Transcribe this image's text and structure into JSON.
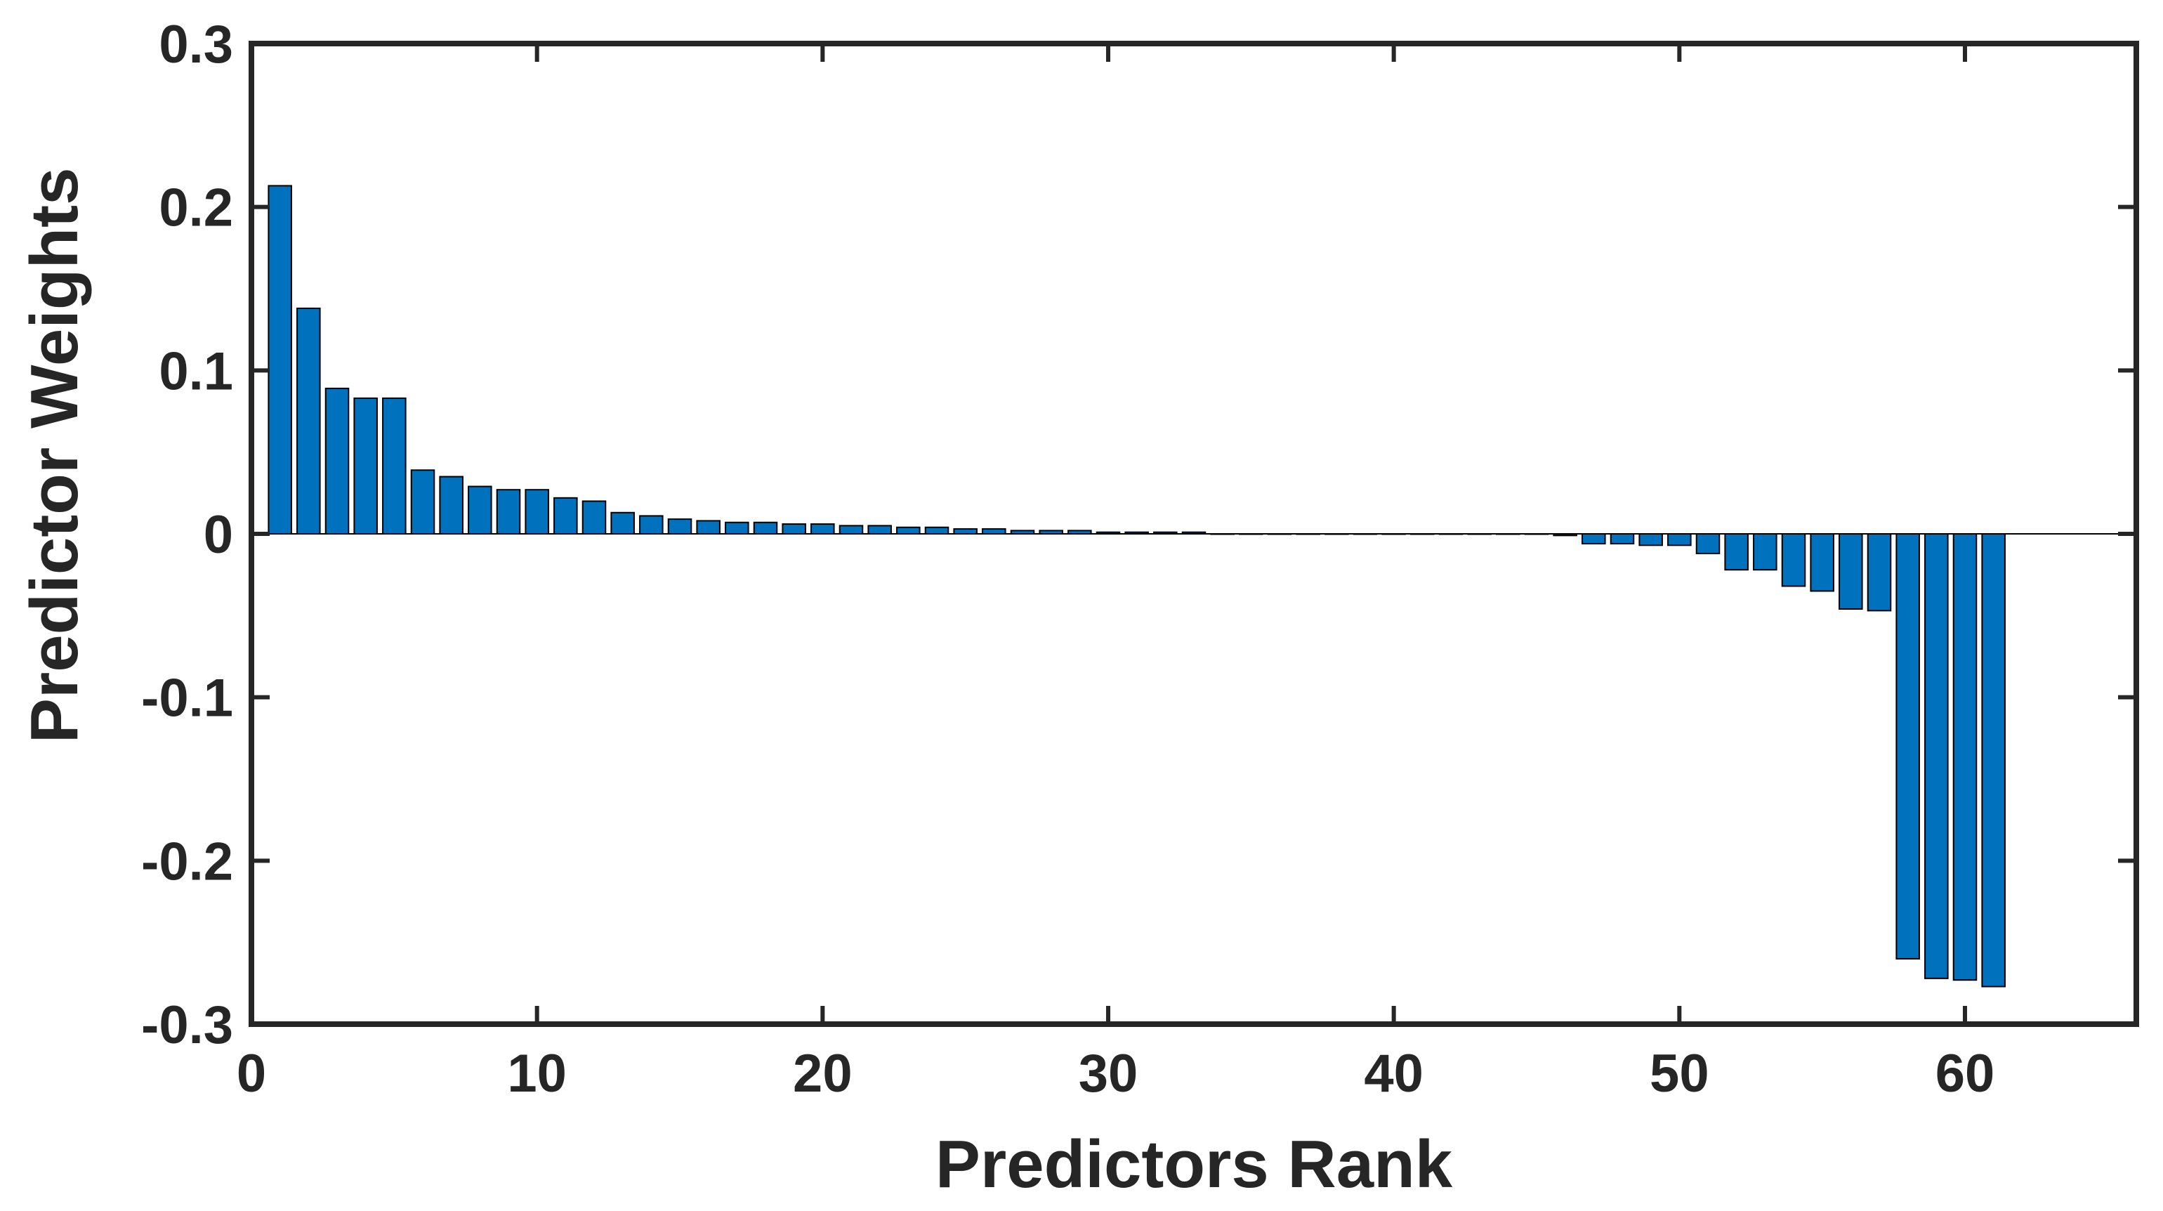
{
  "chart_data": {
    "type": "bar",
    "xlabel": "Predictors Rank",
    "ylabel": "Predictor Weights",
    "xlim": [
      0,
      66
    ],
    "ylim": [
      -0.3,
      0.3
    ],
    "xticks": [
      0,
      10,
      20,
      30,
      40,
      50,
      60
    ],
    "xtick_labels": [
      "0",
      "10",
      "20",
      "30",
      "40",
      "50",
      "60"
    ],
    "yticks": [
      -0.3,
      -0.2,
      -0.1,
      0,
      0.1,
      0.2,
      0.3
    ],
    "ytick_labels": [
      "-0.3",
      "-0.2",
      "-0.1",
      "0",
      "0.1",
      "0.2",
      "0.3"
    ],
    "grid": false,
    "bar_color": "#0072BD",
    "x": [
      1,
      2,
      3,
      4,
      5,
      6,
      7,
      8,
      9,
      10,
      11,
      12,
      13,
      14,
      15,
      16,
      17,
      18,
      19,
      20,
      21,
      22,
      23,
      24,
      25,
      26,
      27,
      28,
      29,
      30,
      31,
      32,
      33,
      34,
      35,
      36,
      37,
      38,
      39,
      40,
      41,
      42,
      43,
      44,
      45,
      46,
      47,
      48,
      49,
      50,
      51,
      52,
      53,
      54,
      55,
      56,
      57,
      58,
      59,
      60,
      61
    ],
    "values": [
      0.213,
      0.138,
      0.089,
      0.083,
      0.083,
      0.039,
      0.035,
      0.029,
      0.027,
      0.027,
      0.022,
      0.02,
      0.013,
      0.011,
      0.009,
      0.008,
      0.007,
      0.007,
      0.006,
      0.006,
      0.005,
      0.005,
      0.004,
      0.004,
      0.003,
      0.003,
      0.002,
      0.002,
      0.002,
      0.001,
      0.001,
      0.001,
      0.001,
      0,
      0,
      0,
      0,
      0,
      0,
      0,
      0,
      0,
      0,
      0,
      0,
      -0.001,
      -0.006,
      -0.006,
      -0.007,
      -0.007,
      -0.012,
      -0.022,
      -0.022,
      -0.032,
      -0.035,
      -0.046,
      -0.047,
      -0.26,
      -0.272,
      -0.273,
      -0.277
    ]
  }
}
